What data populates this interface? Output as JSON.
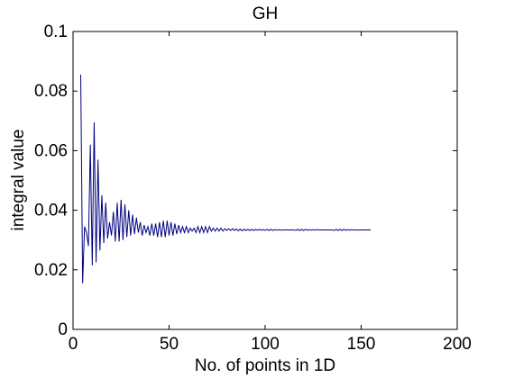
{
  "chart_data": {
    "type": "line",
    "title": "GH",
    "xlabel": "No. of points in 1D",
    "ylabel": "integral value",
    "xlim": [
      0,
      200
    ],
    "ylim": [
      0,
      0.1
    ],
    "xticks": [
      0,
      50,
      100,
      150,
      200
    ],
    "yticks": [
      0,
      0.02,
      0.04,
      0.06,
      0.08,
      0.1
    ],
    "xtick_labels": [
      "0",
      "50",
      "100",
      "150",
      "200"
    ],
    "ytick_labels": [
      "0",
      "0.02",
      "0.04",
      "0.06",
      "0.08",
      "0.1"
    ],
    "grid": false,
    "line_color": "#00007f",
    "series": [
      {
        "x": [
          4,
          5,
          6,
          7,
          8,
          9,
          10,
          11,
          12,
          13,
          14,
          15,
          16,
          17,
          18,
          19,
          20,
          21,
          22,
          23,
          24,
          25,
          26,
          27,
          28,
          29,
          30,
          31,
          32,
          33,
          34,
          35,
          36,
          37,
          38,
          39,
          40,
          41,
          42,
          43,
          44,
          45,
          46,
          47,
          48,
          49,
          50,
          51,
          52,
          53,
          54,
          55,
          56,
          57,
          58,
          59,
          60,
          61,
          62,
          63,
          64,
          65,
          66,
          67,
          68,
          69,
          70,
          71,
          72,
          73,
          74,
          75,
          76,
          77,
          78,
          79,
          80,
          81,
          82,
          83,
          84,
          85,
          86,
          87,
          88,
          89,
          90,
          91,
          92,
          93,
          94,
          95,
          96,
          97,
          98,
          99,
          100,
          101,
          102,
          103,
          104,
          105,
          106,
          107,
          108,
          109,
          110,
          111,
          112,
          113,
          114,
          115,
          116,
          117,
          118,
          119,
          120,
          121,
          122,
          123,
          124,
          125,
          126,
          127,
          128,
          129,
          130,
          131,
          132,
          133,
          134,
          135,
          136,
          137,
          138,
          139,
          140,
          141,
          142,
          143,
          144,
          145,
          146,
          147,
          148,
          149,
          150,
          151,
          152,
          153,
          154,
          155
        ],
        "y": [
          0.0855,
          0.0155,
          0.0345,
          0.0325,
          0.028,
          0.062,
          0.0215,
          0.0695,
          0.0225,
          0.057,
          0.0265,
          0.045,
          0.029,
          0.0425,
          0.0305,
          0.036,
          0.0315,
          0.0395,
          0.0295,
          0.0425,
          0.0295,
          0.0435,
          0.03,
          0.042,
          0.031,
          0.04,
          0.0315,
          0.0385,
          0.032,
          0.0375,
          0.0325,
          0.036,
          0.0315,
          0.035,
          0.0325,
          0.0345,
          0.0315,
          0.0355,
          0.0315,
          0.0355,
          0.031,
          0.036,
          0.031,
          0.0365,
          0.031,
          0.0365,
          0.0315,
          0.036,
          0.0315,
          0.0355,
          0.032,
          0.035,
          0.0325,
          0.0345,
          0.0325,
          0.0345,
          0.0325,
          0.034,
          0.033,
          0.034,
          0.0325,
          0.0345,
          0.0325,
          0.0345,
          0.0325,
          0.0345,
          0.0325,
          0.0345,
          0.033,
          0.034,
          0.033,
          0.034,
          0.033,
          0.034,
          0.033,
          0.0338,
          0.0332,
          0.0338,
          0.0332,
          0.0338,
          0.0332,
          0.0337,
          0.0331,
          0.0337,
          0.0331,
          0.0336,
          0.0332,
          0.0336,
          0.0332,
          0.0336,
          0.0332,
          0.0336,
          0.0333,
          0.0336,
          0.0333,
          0.0335,
          0.0332,
          0.0336,
          0.0332,
          0.0336,
          0.0332,
          0.0335,
          0.0333,
          0.0335,
          0.0333,
          0.0334,
          0.0334,
          0.0334,
          0.0334,
          0.0334,
          0.0334,
          0.0334,
          0.0332,
          0.0336,
          0.0332,
          0.0336,
          0.0332,
          0.0336,
          0.0333,
          0.0335,
          0.0333,
          0.0335,
          0.0333,
          0.0335,
          0.0334,
          0.0334,
          0.0334,
          0.0334,
          0.0334,
          0.0334,
          0.0334,
          0.0334,
          0.0332,
          0.0336,
          0.0332,
          0.0336,
          0.0332,
          0.0336,
          0.0333,
          0.0335,
          0.0333,
          0.0335,
          0.0333,
          0.0335,
          0.0333,
          0.0334,
          0.0334,
          0.0334,
          0.0334,
          0.0334,
          0.0334,
          0.0334
        ]
      }
    ]
  }
}
